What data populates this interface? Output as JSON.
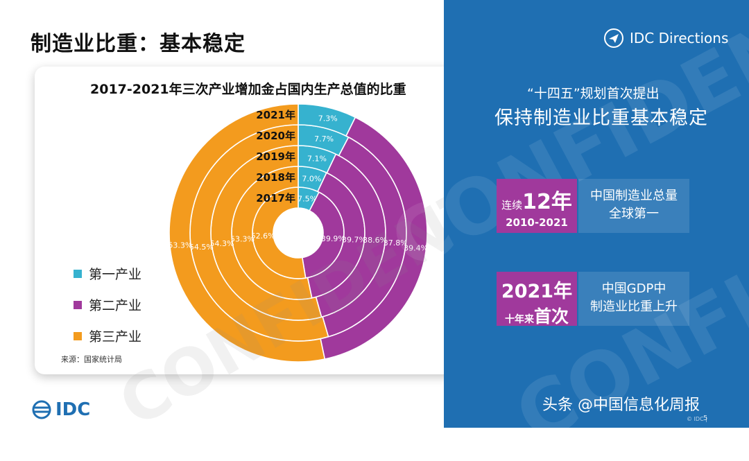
{
  "header": {
    "title": "制造业比重：基本稳定"
  },
  "chart_data": {
    "type": "nested-donut",
    "title": "2017-2021年三次产业增加金占国内生产总值的比重",
    "years": [
      "2017年",
      "2018年",
      "2019年",
      "2020年",
      "2021年"
    ],
    "series": [
      {
        "name": "第一产业",
        "color": "#36b2cf",
        "values": [
          7.5,
          7.0,
          7.1,
          7.7,
          7.3
        ],
        "labels": [
          "7.5%",
          "7.0%",
          "7.1%",
          "7.7%",
          "7.3%"
        ]
      },
      {
        "name": "第二产业",
        "color": "#a0399c",
        "values": [
          39.9,
          39.7,
          38.6,
          37.8,
          39.4
        ],
        "labels": [
          "39.9%",
          "39.7%",
          "38.6%",
          "37.8%",
          "39.4%"
        ]
      },
      {
        "name": "第三产业",
        "color": "#f39b1e",
        "values": [
          52.6,
          53.3,
          54.3,
          54.5,
          53.3
        ],
        "labels": [
          "52.6%",
          "53.3%",
          "54.3%",
          "54.5%",
          "53.3%"
        ]
      }
    ]
  },
  "legend": [
    {
      "label": "第一产业",
      "color": "#36b2cf"
    },
    {
      "label": "第二产业",
      "color": "#a0399c"
    },
    {
      "label": "第三产业",
      "color": "#f39b1e"
    }
  ],
  "source": "来源：国家统计局",
  "logo": {
    "text": "IDC"
  },
  "right_panel": {
    "brand": "IDC Directions",
    "subtitle": "“十四五”规划首次提出",
    "headline": "保持制造业比重基本稳定",
    "watermark": "CONFIDENTIAL",
    "fact1": {
      "prefix": "连续",
      "value": "12年",
      "range": "2010-2021",
      "desc_line1": "中国制造业总量",
      "desc_line2": "全球第一"
    },
    "fact2": {
      "value": "2021年",
      "prefix": "十年来",
      "suffix": "首次",
      "desc_line1": "中国GDP中",
      "desc_line2": "制造业比重上升"
    }
  },
  "footer": {
    "credit": "头条 @中国信息化周报",
    "copyright": "© IDC |",
    "page": "5"
  }
}
